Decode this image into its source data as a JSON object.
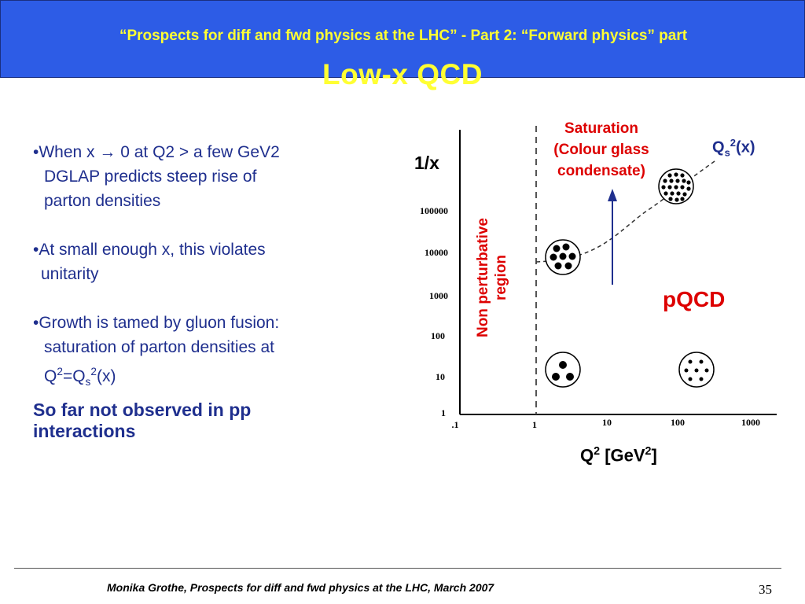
{
  "header": {
    "title": "“Prospects for diff and fwd physics at the LHC” - Part 2: “Forward physics” part"
  },
  "slide_title": "Low-x QCD",
  "bullets": [
    [
      "•When x → 0 at Q2 > a few GeV2",
      "DGLAP predicts steep rise of",
      "parton densities"
    ],
    [
      "•At small enough x, this violates",
      "unitarity"
    ],
    [
      "•Growth is tamed by gluon fusion:",
      "saturation of parton densities at"
    ]
  ],
  "bullet3_formula": {
    "a": "Q",
    "b": "2",
    "c": "=Q",
    "d": "s",
    "e": "2",
    "f": "(x)"
  },
  "conclusion": [
    "So far not observed in pp",
    "interactions"
  ],
  "diagram": {
    "y_label": "1/x",
    "y_ticks": [
      "100000",
      "10000",
      "1000",
      "100",
      "10",
      "1"
    ],
    "x_ticks": [
      ".1",
      "1",
      "10",
      "100",
      "1000"
    ],
    "x_label": {
      "a": "Q",
      "b": "2",
      "c": " [GeV",
      "d": "2",
      "e": "]"
    },
    "qs_label": {
      "a": "Q",
      "b": "s",
      "c": "2",
      "d": "(x)"
    },
    "saturation": [
      "Saturation",
      "(Colour glass",
      "condensate)"
    ],
    "non_perturbative": [
      "Non perturbative",
      "region"
    ],
    "pqcd": "pQCD",
    "colors": {
      "text_red": "#dd0000",
      "arrow_blue": "#1f2f8e"
    }
  },
  "footer": {
    "text": "Monika Grothe, Prospects for diff and fwd physics at the LHC, March 2007",
    "page": "35"
  }
}
